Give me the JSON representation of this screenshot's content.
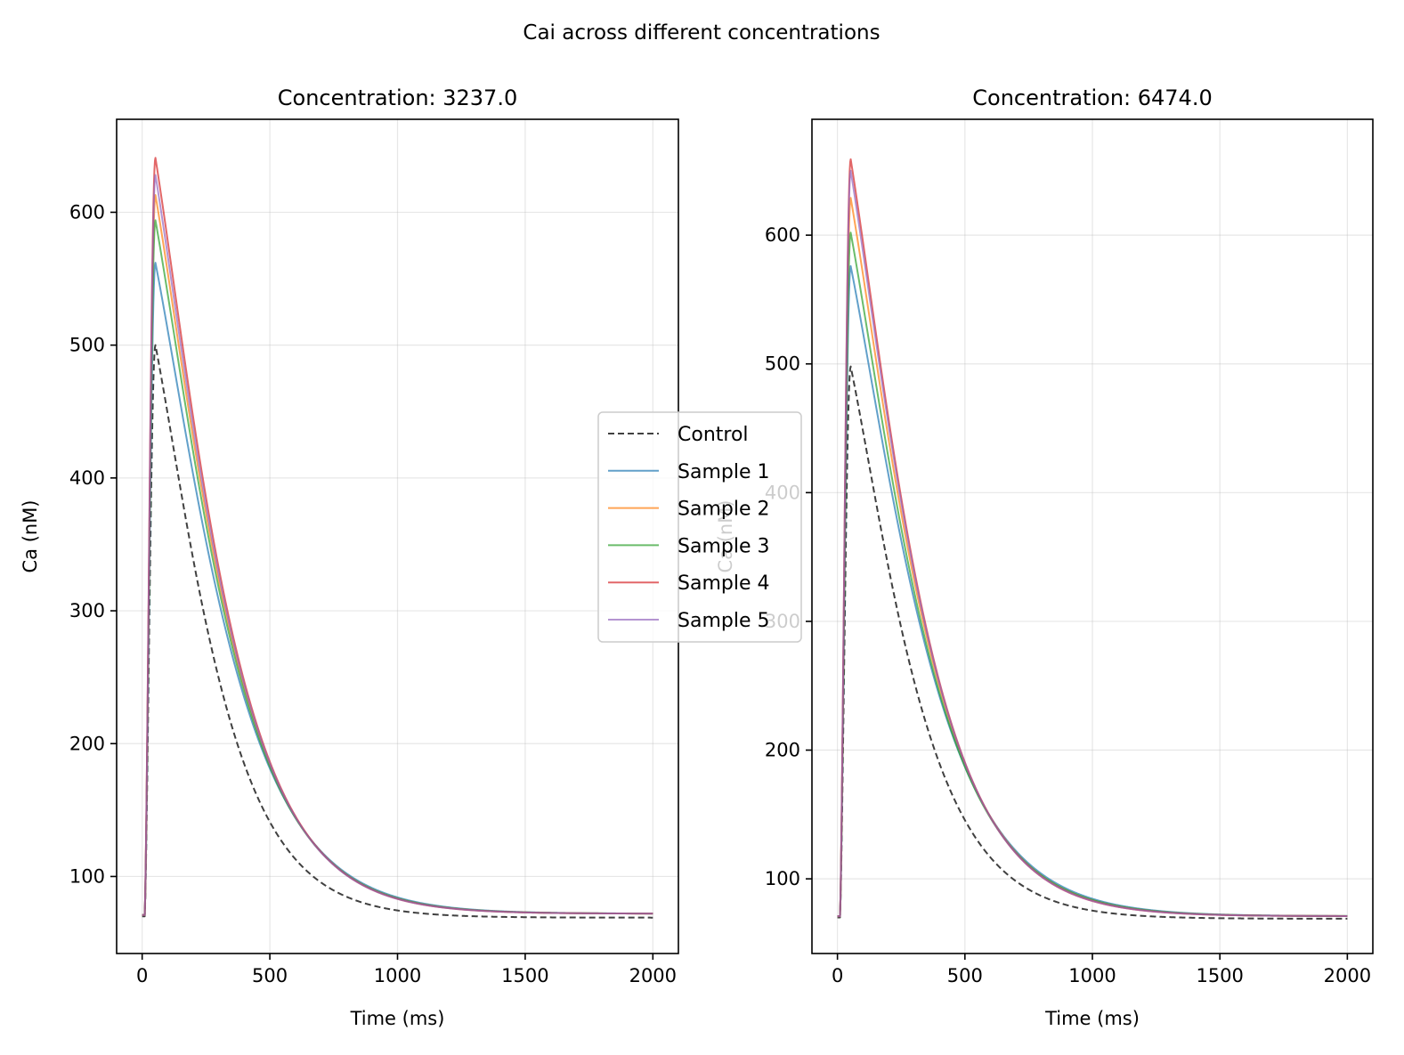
{
  "figure": {
    "title": "Cai across different concentrations"
  },
  "legend": {
    "placement": "center",
    "entries": [
      {
        "label": "Control",
        "color": "#404040",
        "dash": true
      },
      {
        "label": "Sample 1",
        "color": "#1f77b4",
        "dash": false
      },
      {
        "label": "Sample 2",
        "color": "#ff7f0e",
        "dash": false
      },
      {
        "label": "Sample 3",
        "color": "#2ca02c",
        "dash": false
      },
      {
        "label": "Sample 4",
        "color": "#d62728",
        "dash": false
      },
      {
        "label": "Sample 5",
        "color": "#9467bd",
        "dash": false
      }
    ]
  },
  "chart_data": [
    {
      "type": "line",
      "title": "Concentration: 3237.0",
      "xlabel": "Time (ms)",
      "ylabel": "Ca (nM)",
      "xlim": [
        -100,
        2100
      ],
      "ylim": [
        42,
        670
      ],
      "xticks": [
        0,
        500,
        1000,
        1500,
        2000
      ],
      "yticks": [
        100,
        200,
        300,
        400,
        500,
        600
      ],
      "grid": true,
      "series": [
        {
          "name": "Control",
          "color": "#404040",
          "dashed": true,
          "baseline": 70,
          "peak": 500,
          "final": 69,
          "tau": 160
        },
        {
          "name": "Sample 1",
          "color": "#1f77b4",
          "dashed": false,
          "baseline": 71,
          "peak": 562,
          "final": 72,
          "tau": 185
        },
        {
          "name": "Sample 2",
          "color": "#ff7f0e",
          "dashed": false,
          "baseline": 71,
          "peak": 613,
          "final": 72,
          "tau": 178
        },
        {
          "name": "Sample 3",
          "color": "#2ca02c",
          "dashed": false,
          "baseline": 71,
          "peak": 594,
          "final": 72,
          "tau": 180
        },
        {
          "name": "Sample 4",
          "color": "#d62728",
          "dashed": false,
          "baseline": 71,
          "peak": 641,
          "final": 72,
          "tau": 175
        },
        {
          "name": "Sample 5",
          "color": "#9467bd",
          "dashed": false,
          "baseline": 71,
          "peak": 628,
          "final": 72,
          "tau": 176
        }
      ]
    },
    {
      "type": "line",
      "title": "Concentration: 6474.0",
      "xlabel": "Time (ms)",
      "ylabel": "Ca (nM)",
      "xlim": [
        -100,
        2100
      ],
      "ylim": [
        42,
        690
      ],
      "xticks": [
        0,
        500,
        1000,
        1500,
        2000
      ],
      "yticks": [
        100,
        200,
        300,
        400,
        500,
        600
      ],
      "grid": true,
      "series": [
        {
          "name": "Control",
          "color": "#404040",
          "dashed": true,
          "baseline": 70,
          "peak": 498,
          "final": 69,
          "tau": 165
        },
        {
          "name": "Sample 1",
          "color": "#1f77b4",
          "dashed": false,
          "baseline": 71,
          "peak": 576,
          "final": 71,
          "tau": 188
        },
        {
          "name": "Sample 2",
          "color": "#ff7f0e",
          "dashed": false,
          "baseline": 71,
          "peak": 629,
          "final": 71,
          "tau": 180
        },
        {
          "name": "Sample 3",
          "color": "#2ca02c",
          "dashed": false,
          "baseline": 71,
          "peak": 602,
          "final": 71,
          "tau": 183
        },
        {
          "name": "Sample 4",
          "color": "#d62728",
          "dashed": false,
          "baseline": 71,
          "peak": 659,
          "final": 71,
          "tau": 176
        },
        {
          "name": "Sample 5",
          "color": "#9467bd",
          "dashed": false,
          "baseline": 71,
          "peak": 650,
          "final": 71,
          "tau": 177
        }
      ]
    }
  ]
}
